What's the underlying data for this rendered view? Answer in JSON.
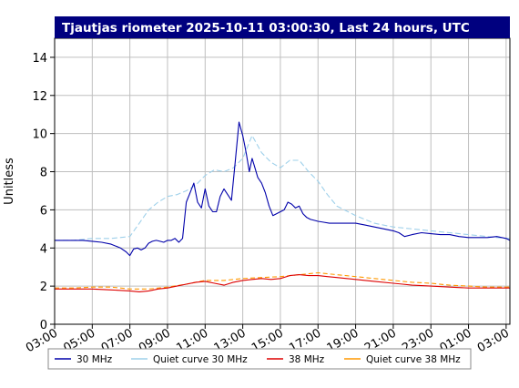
{
  "chart_data": {
    "type": "line",
    "title": "Tjautjas riometer 2025-10-11 03:00:30, Last 24 hours, UTC",
    "ylabel": "Unitless",
    "xlabel": "",
    "ylim": [
      0,
      15
    ],
    "xlim": [
      3,
      27.2
    ],
    "grid": true,
    "legend_position": "bottom",
    "y_ticks": [
      0,
      2,
      4,
      6,
      8,
      10,
      12,
      14
    ],
    "y_tick_labels": [
      "0",
      "2",
      "4",
      "6",
      "8",
      "10",
      "12",
      "14"
    ],
    "x_ticks": [
      3,
      5,
      7,
      9,
      11,
      13,
      15,
      17,
      19,
      21,
      23,
      25,
      27
    ],
    "x_tick_labels": [
      "03:00",
      "05:00",
      "07:00",
      "09:00",
      "11:00",
      "13:00",
      "15:00",
      "17:00",
      "19:00",
      "21:00",
      "23:00",
      "01:00",
      "03:00"
    ],
    "series": [
      {
        "name": "30 MHz",
        "color": "#0000aa",
        "dash": "",
        "x": [
          3.0,
          3.5,
          4.0,
          4.5,
          5.0,
          5.5,
          6.0,
          6.5,
          6.8,
          7.0,
          7.2,
          7.4,
          7.6,
          7.8,
          8.0,
          8.2,
          8.4,
          8.6,
          8.8,
          9.0,
          9.2,
          9.4,
          9.6,
          9.8,
          10.0,
          10.2,
          10.4,
          10.6,
          10.8,
          11.0,
          11.2,
          11.4,
          11.6,
          11.8,
          12.0,
          12.2,
          12.4,
          12.6,
          12.8,
          13.0,
          13.1,
          13.2,
          13.35,
          13.5,
          13.65,
          13.8,
          14.0,
          14.2,
          14.4,
          14.6,
          14.8,
          15.0,
          15.2,
          15.4,
          15.6,
          15.8,
          16.0,
          16.2,
          16.4,
          16.6,
          16.8,
          17.0,
          17.3,
          17.6,
          18.0,
          18.5,
          19.0,
          19.5,
          20.0,
          20.5,
          21.0,
          21.3,
          21.6,
          22.0,
          22.5,
          23.0,
          23.5,
          24.0,
          24.5,
          25.0,
          25.5,
          26.0,
          26.5,
          27.0,
          27.2
        ],
        "y": [
          4.4,
          4.4,
          4.4,
          4.4,
          4.35,
          4.3,
          4.2,
          4.0,
          3.8,
          3.6,
          3.95,
          4.0,
          3.9,
          4.0,
          4.25,
          4.35,
          4.4,
          4.35,
          4.3,
          4.4,
          4.4,
          4.5,
          4.3,
          4.5,
          6.4,
          6.9,
          7.4,
          6.4,
          6.1,
          7.1,
          6.2,
          5.9,
          5.9,
          6.7,
          7.1,
          6.8,
          6.5,
          8.5,
          10.6,
          9.9,
          9.4,
          8.9,
          8.0,
          8.7,
          8.2,
          7.7,
          7.4,
          6.9,
          6.2,
          5.7,
          5.8,
          5.9,
          6.0,
          6.4,
          6.3,
          6.1,
          6.2,
          5.8,
          5.6,
          5.5,
          5.45,
          5.4,
          5.35,
          5.3,
          5.3,
          5.3,
          5.3,
          5.2,
          5.1,
          5.0,
          4.9,
          4.8,
          4.6,
          4.7,
          4.8,
          4.75,
          4.7,
          4.7,
          4.6,
          4.55,
          4.55,
          4.55,
          4.6,
          4.5,
          4.4
        ]
      },
      {
        "name": "Quiet curve 30 MHz",
        "color": "#9ed0ea",
        "dash": "6,3",
        "x": [
          3.0,
          4.0,
          5.0,
          6.0,
          7.0,
          7.5,
          8.0,
          8.5,
          9.0,
          9.5,
          10.0,
          10.5,
          11.0,
          11.5,
          12.0,
          12.5,
          13.0,
          13.5,
          14.0,
          14.5,
          15.0,
          15.5,
          16.0,
          16.5,
          17.0,
          17.5,
          18.0,
          19.0,
          20.0,
          21.0,
          22.0,
          23.0,
          24.0,
          25.0,
          26.0,
          27.0,
          27.2
        ],
        "y": [
          4.4,
          4.4,
          4.5,
          4.5,
          4.6,
          5.3,
          6.0,
          6.4,
          6.7,
          6.8,
          7.0,
          7.3,
          7.8,
          8.1,
          8.0,
          8.2,
          8.7,
          9.9,
          9.0,
          8.5,
          8.2,
          8.6,
          8.6,
          8.0,
          7.5,
          6.8,
          6.2,
          5.7,
          5.3,
          5.1,
          5.0,
          4.9,
          4.8,
          4.7,
          4.6,
          4.5,
          4.5
        ]
      },
      {
        "name": "38 MHz",
        "color": "#dd0000",
        "dash": "",
        "x": [
          3.0,
          4.0,
          5.0,
          6.0,
          7.0,
          7.5,
          8.0,
          8.5,
          9.0,
          9.5,
          10.0,
          10.5,
          11.0,
          11.5,
          12.0,
          12.5,
          13.0,
          13.5,
          14.0,
          14.5,
          15.0,
          15.5,
          16.0,
          16.5,
          17.0,
          17.5,
          18.0,
          19.0,
          20.0,
          21.0,
          21.5,
          22.0,
          23.0,
          24.0,
          25.0,
          26.0,
          27.0,
          27.2
        ],
        "y": [
          1.85,
          1.85,
          1.85,
          1.8,
          1.75,
          1.7,
          1.75,
          1.85,
          1.9,
          2.0,
          2.1,
          2.2,
          2.25,
          2.15,
          2.05,
          2.2,
          2.3,
          2.35,
          2.4,
          2.35,
          2.4,
          2.55,
          2.6,
          2.55,
          2.55,
          2.5,
          2.45,
          2.35,
          2.25,
          2.15,
          2.1,
          2.05,
          2.0,
          1.95,
          1.9,
          1.9,
          1.9,
          1.9
        ]
      },
      {
        "name": "Quiet curve 38 MHz",
        "color": "#ff9900",
        "dash": "5,3",
        "x": [
          3.0,
          4.0,
          5.0,
          6.0,
          7.0,
          8.0,
          9.0,
          10.0,
          11.0,
          12.0,
          13.0,
          14.0,
          15.0,
          16.0,
          17.0,
          18.0,
          19.0,
          20.0,
          21.0,
          22.0,
          23.0,
          24.0,
          25.0,
          26.0,
          27.0,
          27.2
        ],
        "y": [
          1.9,
          1.9,
          1.95,
          1.95,
          1.85,
          1.85,
          1.95,
          2.1,
          2.3,
          2.3,
          2.4,
          2.45,
          2.5,
          2.6,
          2.7,
          2.6,
          2.5,
          2.4,
          2.3,
          2.2,
          2.15,
          2.05,
          2.0,
          1.95,
          1.95,
          1.95
        ]
      }
    ]
  }
}
